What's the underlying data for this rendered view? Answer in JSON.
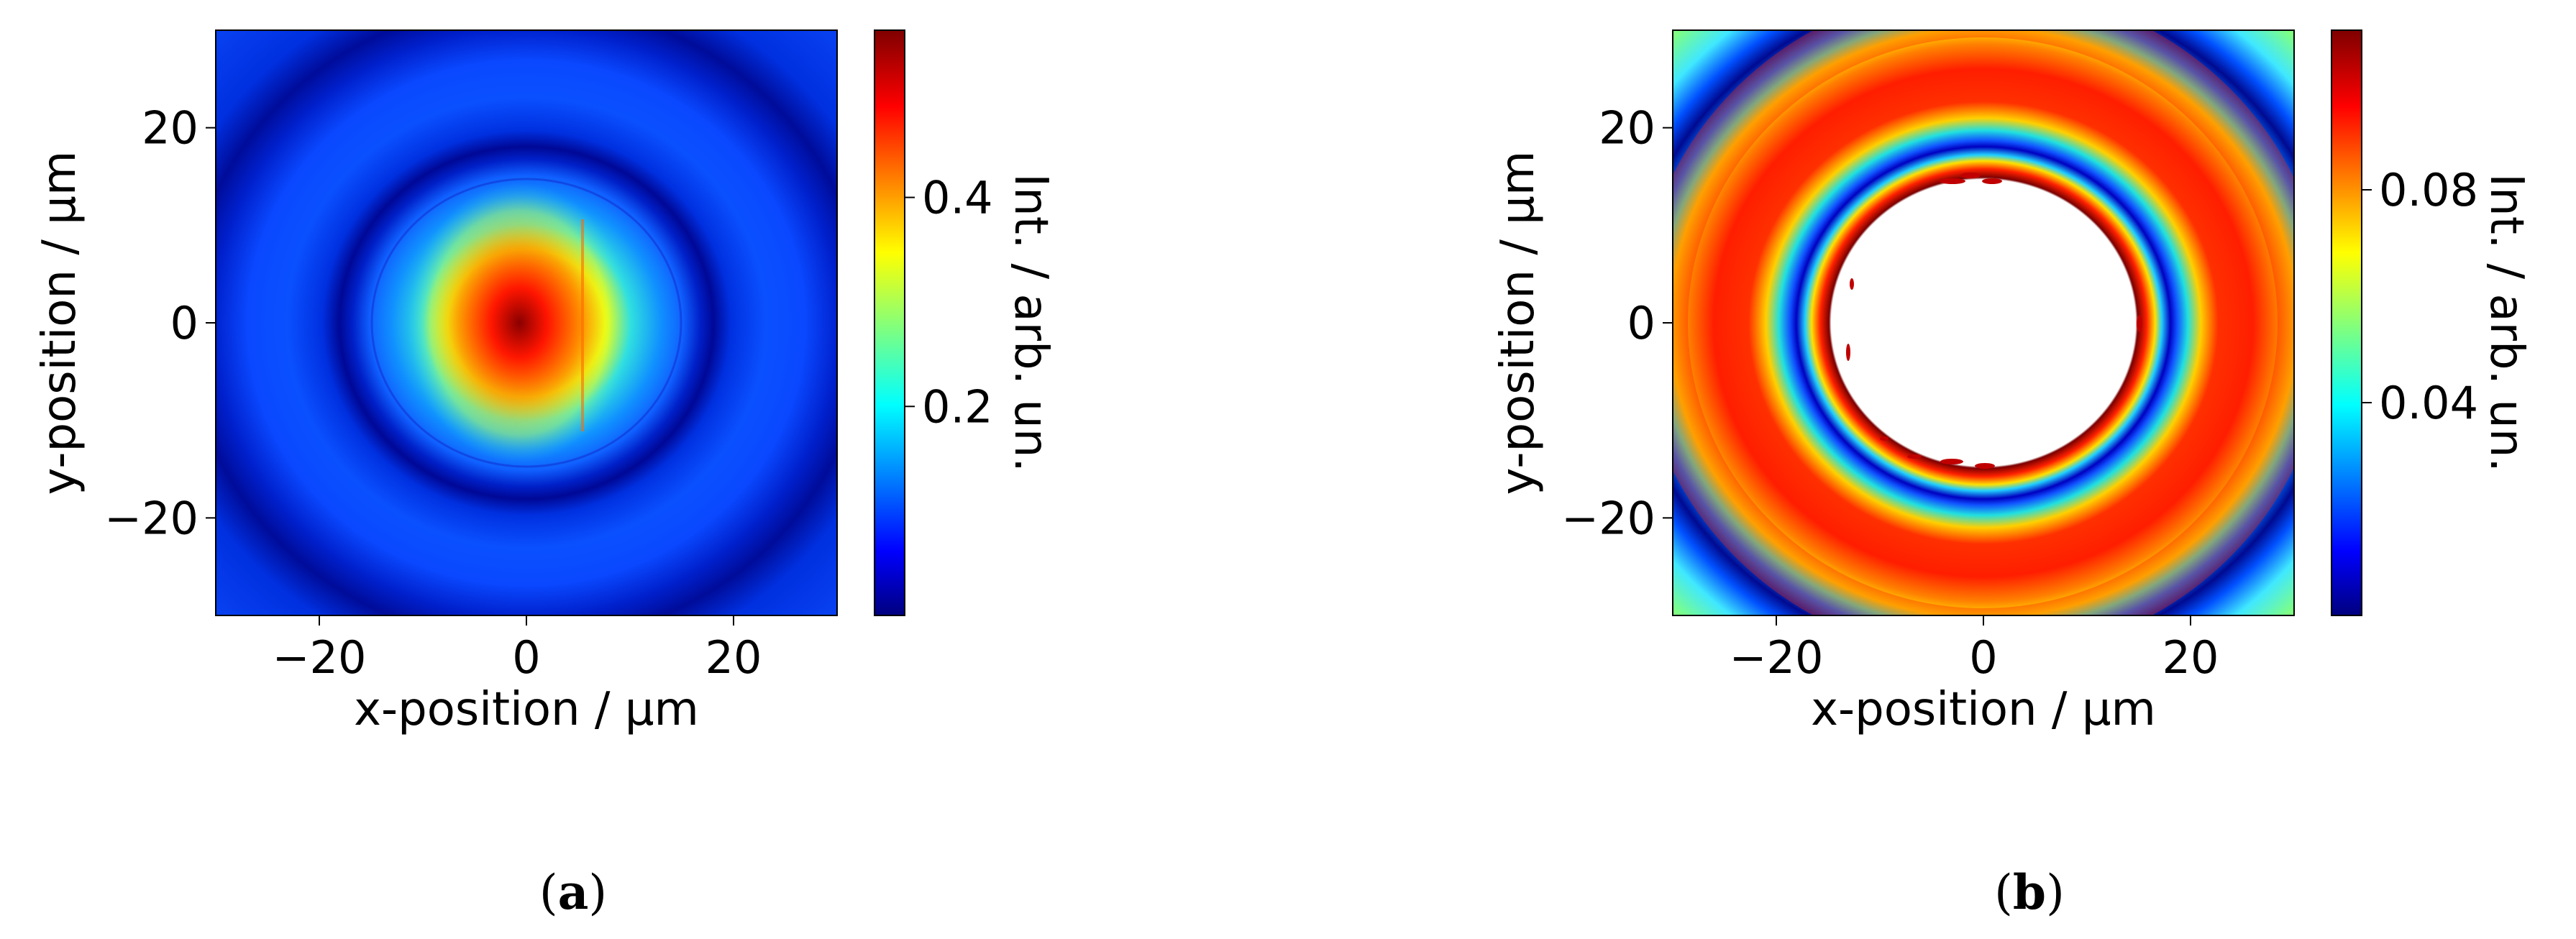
{
  "chart_data": [
    {
      "type": "heatmap",
      "panel_label": "a",
      "xlabel": "x-position / μm",
      "ylabel": "y-position / μm",
      "xlim": [
        -30,
        30
      ],
      "ylim": [
        -30,
        30
      ],
      "xticks": [
        -20,
        0,
        20
      ],
      "yticks": [
        -20,
        0,
        20
      ],
      "colormap": "jet",
      "colorbar": {
        "label": "Int. / arb. un.",
        "range": [
          0.0,
          0.56
        ],
        "ticks": [
          0.2,
          0.4
        ],
        "tick_labels": [
          "0.2",
          "0.4"
        ]
      },
      "description_values": {
        "central_peak_intensity": 0.56,
        "central_peak_center": [
          0,
          0
        ],
        "dark_ring_radius": 18,
        "bright_ring_radius": 23,
        "background_intensity": 0.07
      }
    },
    {
      "type": "heatmap",
      "panel_label": "b",
      "xlabel": "x-position / μm",
      "ylabel": "y-position / μm",
      "xlim": [
        -30,
        30
      ],
      "ylim": [
        -30,
        30
      ],
      "xticks": [
        -20,
        0,
        20
      ],
      "yticks": [
        -20,
        0,
        20
      ],
      "colormap": "jet",
      "colorbar": {
        "label": "Int. / arb. un.",
        "range": [
          0.0,
          0.11
        ],
        "ticks": [
          0.04,
          0.08
        ],
        "tick_labels": [
          "0.04",
          "0.08"
        ]
      },
      "description_values": {
        "saturated_core_radius": 15,
        "dark_ring_radius": 18.5,
        "bright_ring_radius": 24,
        "outer_dark_radius": 33
      }
    }
  ],
  "captions": {
    "a": {
      "open": "(",
      "letter": "a",
      "close": ")"
    },
    "b": {
      "open": "(",
      "letter": "b",
      "close": ")"
    }
  },
  "colors": {
    "jet_dark_blue": "#00007f",
    "jet_blue": "#0000ff",
    "jet_cyan": "#00ffff",
    "jet_yellow": "#ffff00",
    "jet_red": "#ff0000",
    "jet_dark_red": "#7f0000"
  }
}
